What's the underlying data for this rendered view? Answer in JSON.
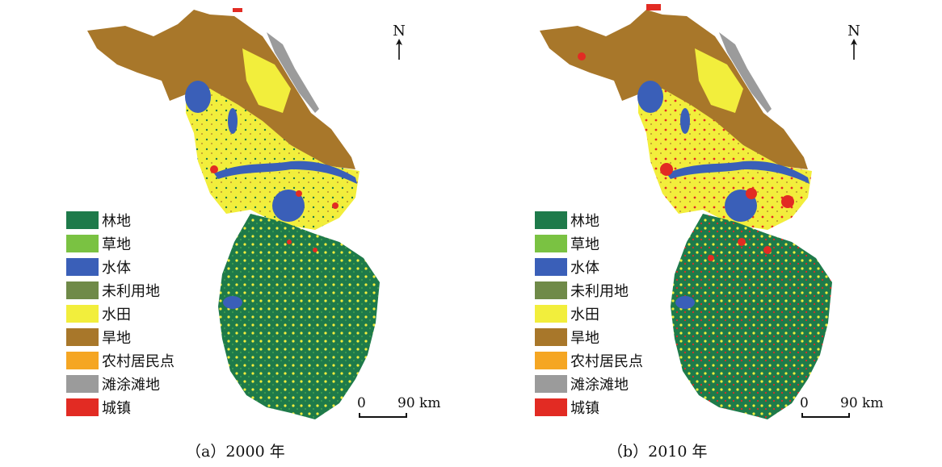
{
  "legend": [
    {
      "label": "林地",
      "color": "#1e7a4a"
    },
    {
      "label": "草地",
      "color": "#7ac242"
    },
    {
      "label": "水体",
      "color": "#3a5fb8"
    },
    {
      "label": "未利用地",
      "color": "#6f8a48"
    },
    {
      "label": "水田",
      "color": "#f2ee3c"
    },
    {
      "label": "旱地",
      "color": "#a8772a"
    },
    {
      "label": "农村居民点",
      "color": "#f5a623"
    },
    {
      "label": "滩涂滩地",
      "color": "#9b9b9b"
    },
    {
      "label": "城镇",
      "color": "#e22b23"
    }
  ],
  "north_label": "N",
  "scale": {
    "zero": "0",
    "distance": "90 km"
  },
  "panels": [
    {
      "caption": "（a）2000 年"
    },
    {
      "caption": "（b）2010 年"
    }
  ]
}
